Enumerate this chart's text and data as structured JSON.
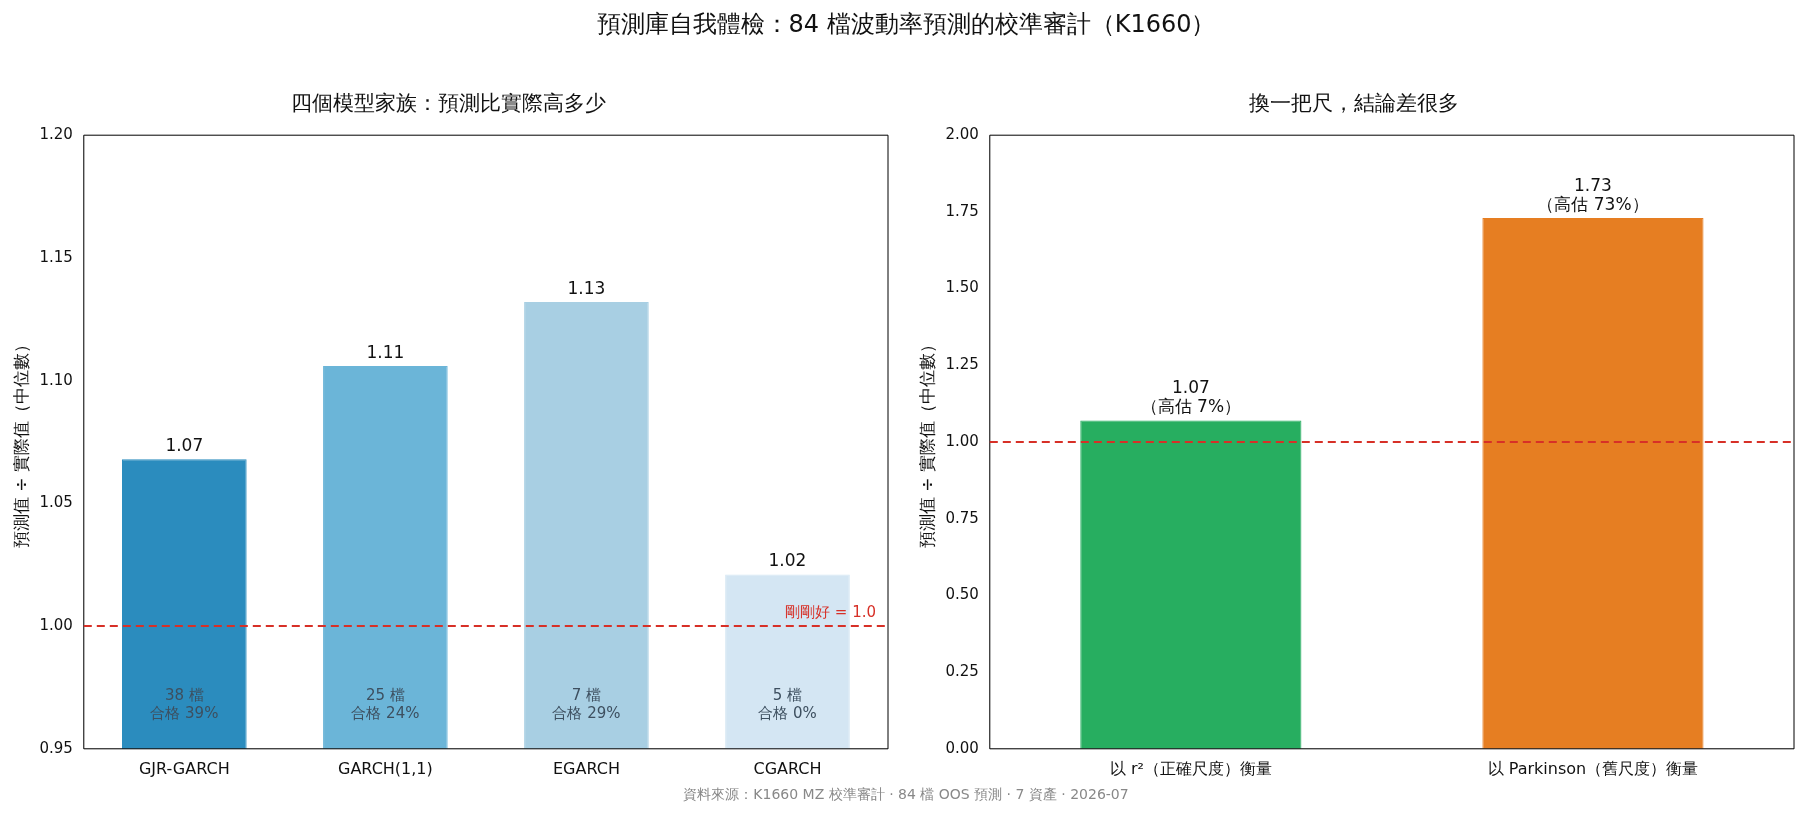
{
  "chart_data": [
    {
      "type": "bar",
      "title": "四個模型家族：預測比實際高多少",
      "ylabel": "預測值 ÷ 實際值（中位數）",
      "categories": [
        "GJR-GARCH",
        "GARCH(1,1)",
        "EGARCH",
        "CGARCH"
      ],
      "values": [
        1.068,
        1.106,
        1.132,
        1.021
      ],
      "colors": [
        "#2b8cbe",
        "#6bb5d8",
        "#a8cfe3",
        "#d4e6f3"
      ],
      "value_labels": [
        "1.07",
        "1.11",
        "1.13",
        "1.02"
      ],
      "ylim": [
        0.95,
        1.2
      ],
      "yticks": [
        0.95,
        {
          "value": 1,
          "label": "1.00"
        },
        1.05,
        {
          "value": 1.1,
          "label": "1.10"
        },
        1.15,
        {
          "value": 1.2,
          "label": "1.20"
        }
      ],
      "ref_lines": [
        {
          "axis": "y",
          "value": 1,
          "label": "剛剛好 = 1.0",
          "color": "#d73027",
          "line_style": "dashed"
        }
      ],
      "annotations": [
        "預測庫自我體檢：84 檔波動率預測的校準審計（K1660）",
        "38 檔",
        "合格 39%",
        "25 檔",
        "合格 24%",
        "7 檔",
        "合格 29%",
        "5 檔",
        "合格 0%"
      ],
      "grid": false,
      "legend": false
    },
    {
      "type": "bar",
      "title": "換一把尺，結論差很多",
      "ylabel": "預測值 ÷ 實際值（中位數）",
      "categories": [
        "以 r²（正確尺度）衡量",
        "以 Parkinson（舊尺度）衡量"
      ],
      "values": [
        1.07,
        1.73
      ],
      "colors": [
        "#27ae60",
        "#e67e22"
      ],
      "value_labels": [
        "1.07\n（高估 7%）",
        "1.73\n（高估 73%）"
      ],
      "ylim": [
        0,
        2
      ],
      "yticks": [
        {
          "value": 0,
          "label": "0.00"
        },
        0.25,
        {
          "value": 0.5,
          "label": "0.50"
        },
        0.75,
        {
          "value": 1,
          "label": "1.00"
        },
        1.25,
        {
          "value": 1.5,
          "label": "1.50"
        },
        1.75,
        {
          "value": 2,
          "label": "2.00"
        }
      ],
      "ref_lines": [
        {
          "axis": "y",
          "value": 1,
          "color": "#d73027",
          "line_style": "dashed"
        }
      ],
      "annotations": [
        "資料來源：K1660 MZ 校準審計 · 84 檔 OOS 預測 · 7 資產 · 2026-07"
      ],
      "grid": false,
      "legend": false
    }
  ]
}
